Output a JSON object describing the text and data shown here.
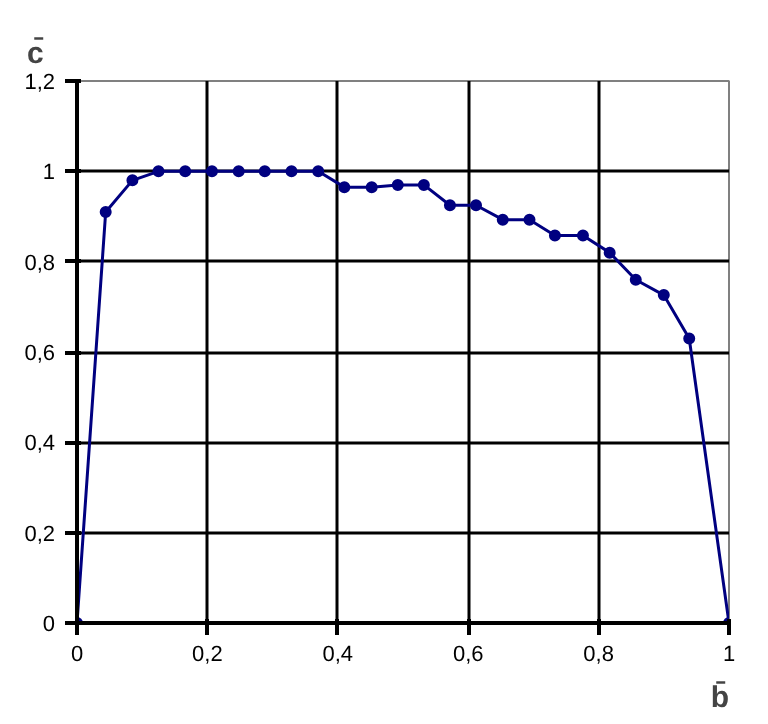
{
  "chart_data": {
    "type": "line",
    "xlabel": "b̄",
    "ylabel": "c̄",
    "x": [
      0,
      0.044,
      0.085,
      0.125,
      0.166,
      0.207,
      0.248,
      0.288,
      0.329,
      0.37,
      0.41,
      0.452,
      0.492,
      0.532,
      0.572,
      0.612,
      0.653,
      0.694,
      0.733,
      0.776,
      0.817,
      0.857,
      0.9,
      0.939,
      1
    ],
    "series": [
      {
        "color": "#000080",
        "values": [
          0,
          0.91,
          0.98,
          1.0,
          1.0,
          1.0,
          1.0,
          1.0,
          1.0,
          1.0,
          0.965,
          0.965,
          0.97,
          0.97,
          0.925,
          0.925,
          0.893,
          0.893,
          0.858,
          0.858,
          0.82,
          0.76,
          0.726,
          0.63,
          0
        ]
      }
    ],
    "xlim": [
      0,
      1
    ],
    "ylim": [
      0,
      1.2
    ],
    "xticks": [
      0,
      {
        "value": 0.2,
        "label": "0,2"
      },
      {
        "value": 0.4,
        "label": "0,4"
      },
      {
        "value": 0.6,
        "label": "0,6"
      },
      {
        "value": 0.8,
        "label": "0,8"
      },
      1
    ],
    "yticks": [
      0,
      {
        "value": 0.2,
        "label": "0,2"
      },
      {
        "value": 0.4,
        "label": "0,4"
      },
      {
        "value": 0.6,
        "label": "0,6"
      },
      {
        "value": 0.8,
        "label": "0,8"
      },
      1,
      {
        "value": 1.2,
        "label": "1,2"
      }
    ],
    "grid": true,
    "marker": "circle",
    "line_style": "solid"
  }
}
